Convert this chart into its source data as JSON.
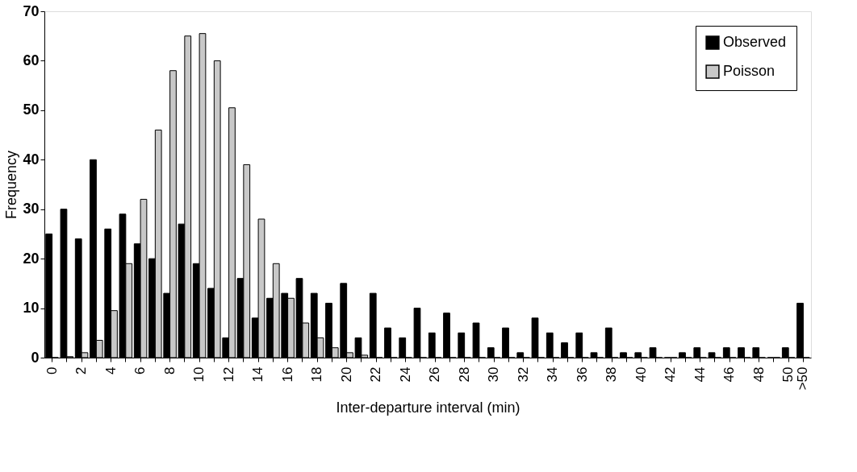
{
  "chart_data": {
    "type": "bar",
    "xlabel": "Inter-departure interval (min)",
    "ylabel": "Frequency",
    "categories": [
      "0",
      null,
      "2",
      null,
      "4",
      null,
      "6",
      null,
      "8",
      null,
      "10",
      null,
      "12",
      null,
      "14",
      null,
      "16",
      null,
      "18",
      null,
      "20",
      null,
      "22",
      null,
      "24",
      null,
      "26",
      null,
      "28",
      null,
      "30",
      null,
      "32",
      null,
      "34",
      null,
      "36",
      null,
      "38",
      null,
      "40",
      null,
      "42",
      null,
      "44",
      null,
      "46",
      null,
      "48",
      null,
      "50",
      ">50"
    ],
    "series": [
      {
        "name": "Observed",
        "color": "#000000",
        "values": [
          25,
          30,
          24,
          40,
          26,
          29,
          23,
          20,
          13,
          27,
          19,
          14,
          4,
          16,
          8,
          12,
          13,
          16,
          13,
          11,
          15,
          4,
          13,
          6,
          4,
          10,
          5,
          9,
          5,
          7,
          2,
          6,
          1,
          8,
          5,
          3,
          5,
          1,
          6,
          1,
          1,
          2,
          0,
          1,
          2,
          1,
          2,
          2,
          2,
          0,
          2,
          11
        ]
      },
      {
        "name": "Poisson",
        "color": "#c8c8c8",
        "values": [
          0,
          0.2,
          1,
          3.5,
          9.5,
          19,
          32,
          46,
          58,
          65,
          65.5,
          60,
          50.5,
          39,
          28,
          19,
          12,
          7,
          4,
          2,
          1,
          0.5,
          0,
          0,
          0,
          0,
          0,
          0,
          0,
          0,
          0,
          0,
          0,
          0,
          0,
          0,
          0,
          0,
          0,
          0,
          0,
          0,
          0,
          0,
          0,
          0,
          0,
          0,
          0,
          0,
          0,
          0
        ]
      }
    ],
    "ylim": [
      0,
      70
    ],
    "yticks": [
      0,
      10,
      20,
      30,
      40,
      50,
      60,
      70
    ],
    "grid": false,
    "legend": "top right"
  }
}
